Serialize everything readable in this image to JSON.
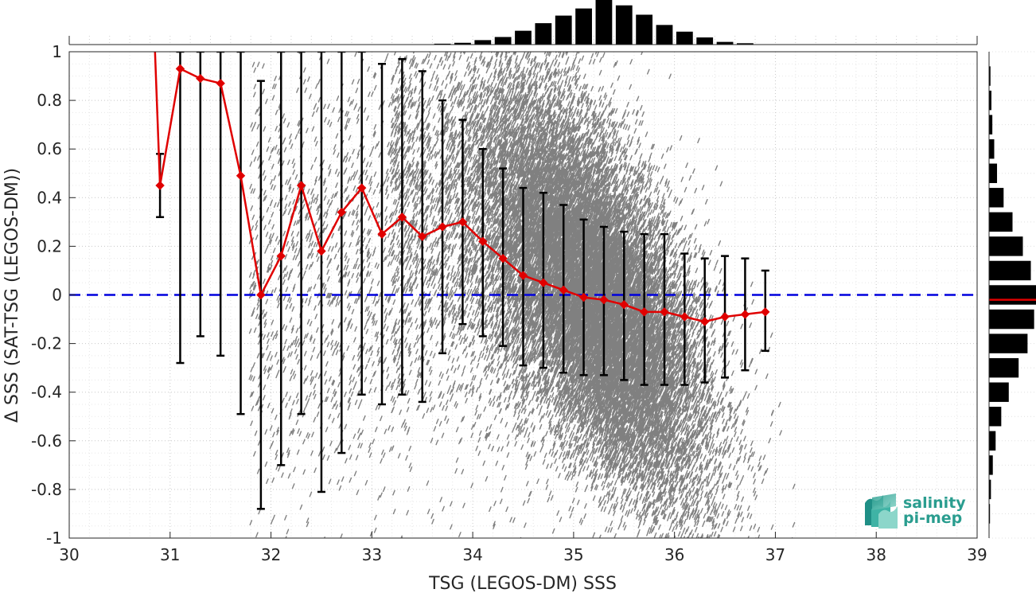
{
  "chart_data": {
    "type": "scatter",
    "xlabel": "TSG (LEGOS-DM) SSS",
    "ylabel": "Δ SSS (SAT-TSG (LEGOS-DM))",
    "xlim": [
      30,
      39
    ],
    "ylim": [
      -1,
      1
    ],
    "xticks": [
      "30",
      "31",
      "32",
      "33",
      "34",
      "35",
      "36",
      "37",
      "38",
      "39"
    ],
    "yticks": [
      "1",
      "0.8",
      "0.6",
      "0.4",
      "0.2",
      "0",
      "-0.2",
      "-0.4",
      "-0.6",
      "-0.8",
      "-1"
    ],
    "grid": "dotted minor and major",
    "zero_line": {
      "y": 0,
      "color": "#0000dd",
      "style": "dashed"
    },
    "scatter_color": "#808080",
    "mean_series": {
      "color": "#e00000",
      "x": [
        30.85,
        30.9,
        31.1,
        31.3,
        31.5,
        31.7,
        31.9,
        32.1,
        32.3,
        32.5,
        32.7,
        32.9,
        33.1,
        33.3,
        33.5,
        33.7,
        33.9,
        34.1,
        34.3,
        34.5,
        34.7,
        34.9,
        35.1,
        35.3,
        35.5,
        35.7,
        35.9,
        36.1,
        36.3,
        36.5,
        36.7,
        36.9
      ],
      "y": [
        1.0,
        0.45,
        0.93,
        0.89,
        0.87,
        0.49,
        0.0,
        0.16,
        0.45,
        0.18,
        0.34,
        0.44,
        0.25,
        0.32,
        0.24,
        0.28,
        0.3,
        0.22,
        0.15,
        0.08,
        0.05,
        0.02,
        -0.01,
        -0.02,
        -0.04,
        -0.07,
        -0.07,
        -0.09,
        -0.11,
        -0.09,
        -0.08,
        -0.07
      ]
    },
    "error_bars": {
      "color": "#000000",
      "x": [
        30.9,
        31.1,
        31.3,
        31.5,
        31.7,
        31.9,
        32.1,
        32.3,
        32.5,
        32.7,
        32.9,
        33.1,
        33.3,
        33.5,
        33.7,
        33.9,
        34.1,
        34.3,
        34.5,
        34.7,
        34.9,
        35.1,
        35.3,
        35.5,
        35.7,
        35.9,
        36.1,
        36.3,
        36.5,
        36.7,
        36.9
      ],
      "lower": [
        0.32,
        -0.28,
        -0.17,
        -0.25,
        -0.49,
        -0.88,
        -0.7,
        -0.49,
        -0.81,
        -0.65,
        -0.41,
        -0.45,
        -0.41,
        -0.44,
        -0.24,
        -0.12,
        -0.17,
        -0.21,
        -0.29,
        -0.3,
        -0.32,
        -0.33,
        -0.33,
        -0.35,
        -0.37,
        -0.37,
        -0.37,
        -0.36,
        -0.34,
        -0.31,
        -0.23
      ],
      "upper": [
        0.58,
        1.0,
        1.0,
        1.0,
        1.0,
        0.88,
        1.0,
        1.0,
        1.0,
        1.0,
        1.0,
        0.95,
        0.97,
        0.92,
        0.8,
        0.72,
        0.6,
        0.52,
        0.44,
        0.42,
        0.37,
        0.31,
        0.28,
        0.26,
        0.25,
        0.25,
        0.17,
        0.15,
        0.16,
        0.15,
        0.1
      ]
    },
    "top_histogram": {
      "bin_centers": [
        33.7,
        33.9,
        34.1,
        34.3,
        34.5,
        34.7,
        34.9,
        35.1,
        35.3,
        35.5,
        35.7,
        35.9,
        36.1,
        36.3,
        36.5,
        36.7
      ],
      "relative_counts": [
        0.02,
        0.04,
        0.1,
        0.17,
        0.31,
        0.48,
        0.65,
        0.81,
        1.0,
        0.88,
        0.67,
        0.44,
        0.29,
        0.16,
        0.06,
        0.03
      ]
    },
    "right_histogram": {
      "bin_centers": [
        0.9,
        0.8,
        0.7,
        0.6,
        0.5,
        0.4,
        0.3,
        0.2,
        0.1,
        0.0,
        -0.1,
        -0.2,
        -0.3,
        -0.4,
        -0.5,
        -0.6,
        -0.7,
        -0.8,
        -0.9
      ],
      "relative_counts": [
        0.03,
        0.05,
        0.07,
        0.11,
        0.17,
        0.31,
        0.5,
        0.72,
        0.89,
        1.0,
        0.96,
        0.82,
        0.63,
        0.42,
        0.26,
        0.14,
        0.08,
        0.04,
        0.02
      ],
      "mean_line": {
        "y": -0.02,
        "color": "#e00000"
      }
    },
    "logo": {
      "line1": "salinity",
      "line2": "pi-mep"
    }
  }
}
